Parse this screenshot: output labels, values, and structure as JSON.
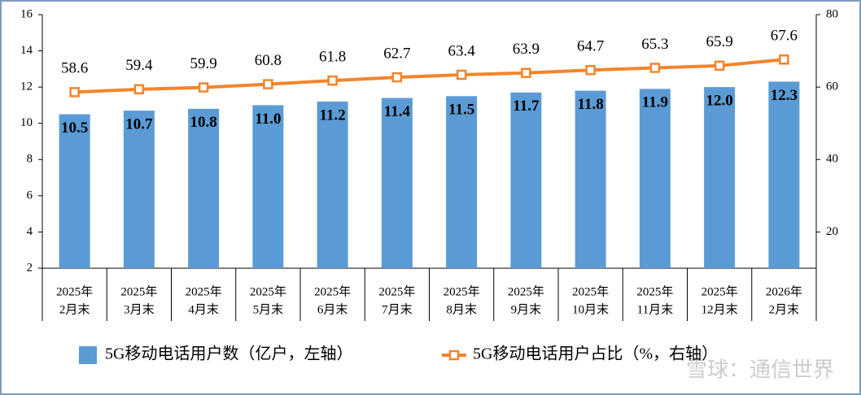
{
  "chart_data": {
    "type": "bar-line",
    "categories": [
      [
        "2025年",
        "2月末"
      ],
      [
        "2025年",
        "3月末"
      ],
      [
        "2025年",
        "4月末"
      ],
      [
        "2025年",
        "5月末"
      ],
      [
        "2025年",
        "6月末"
      ],
      [
        "2025年",
        "7月末"
      ],
      [
        "2025年",
        "8月末"
      ],
      [
        "2025年",
        "9月末"
      ],
      [
        "2025年",
        "10月末"
      ],
      [
        "2025年",
        "11月末"
      ],
      [
        "2025年",
        "12月末"
      ],
      [
        "2026年",
        "2月末"
      ]
    ],
    "series": [
      {
        "name": "5G移动电话用户数（亿户，左轴）",
        "type": "bar",
        "color": "#5b9bd5",
        "values": [
          10.5,
          10.7,
          10.8,
          11.0,
          11.2,
          11.4,
          11.5,
          11.7,
          11.8,
          11.9,
          12.0,
          12.3
        ],
        "value_labels": [
          "10.5",
          "10.7",
          "10.8",
          "11.0",
          "11.2",
          "11.4",
          "11.5",
          "11.7",
          "11.8",
          "11.9",
          "12.0",
          "12.3"
        ]
      },
      {
        "name": "5G移动电话用户占比（%，右轴）",
        "type": "line",
        "axis": "y2",
        "color": "#f4842a",
        "values": [
          58.6,
          59.4,
          59.9,
          60.8,
          61.8,
          62.7,
          63.4,
          63.9,
          64.7,
          65.3,
          65.9,
          67.6
        ]
      }
    ],
    "ylim": [
      2,
      16
    ],
    "yticks": [
      2,
      4,
      6,
      8,
      10,
      12,
      14,
      16
    ],
    "y2lim": [
      10,
      80
    ],
    "y2ticks": [
      20,
      40,
      60,
      80
    ],
    "watermark": "雪球：通信世界"
  }
}
